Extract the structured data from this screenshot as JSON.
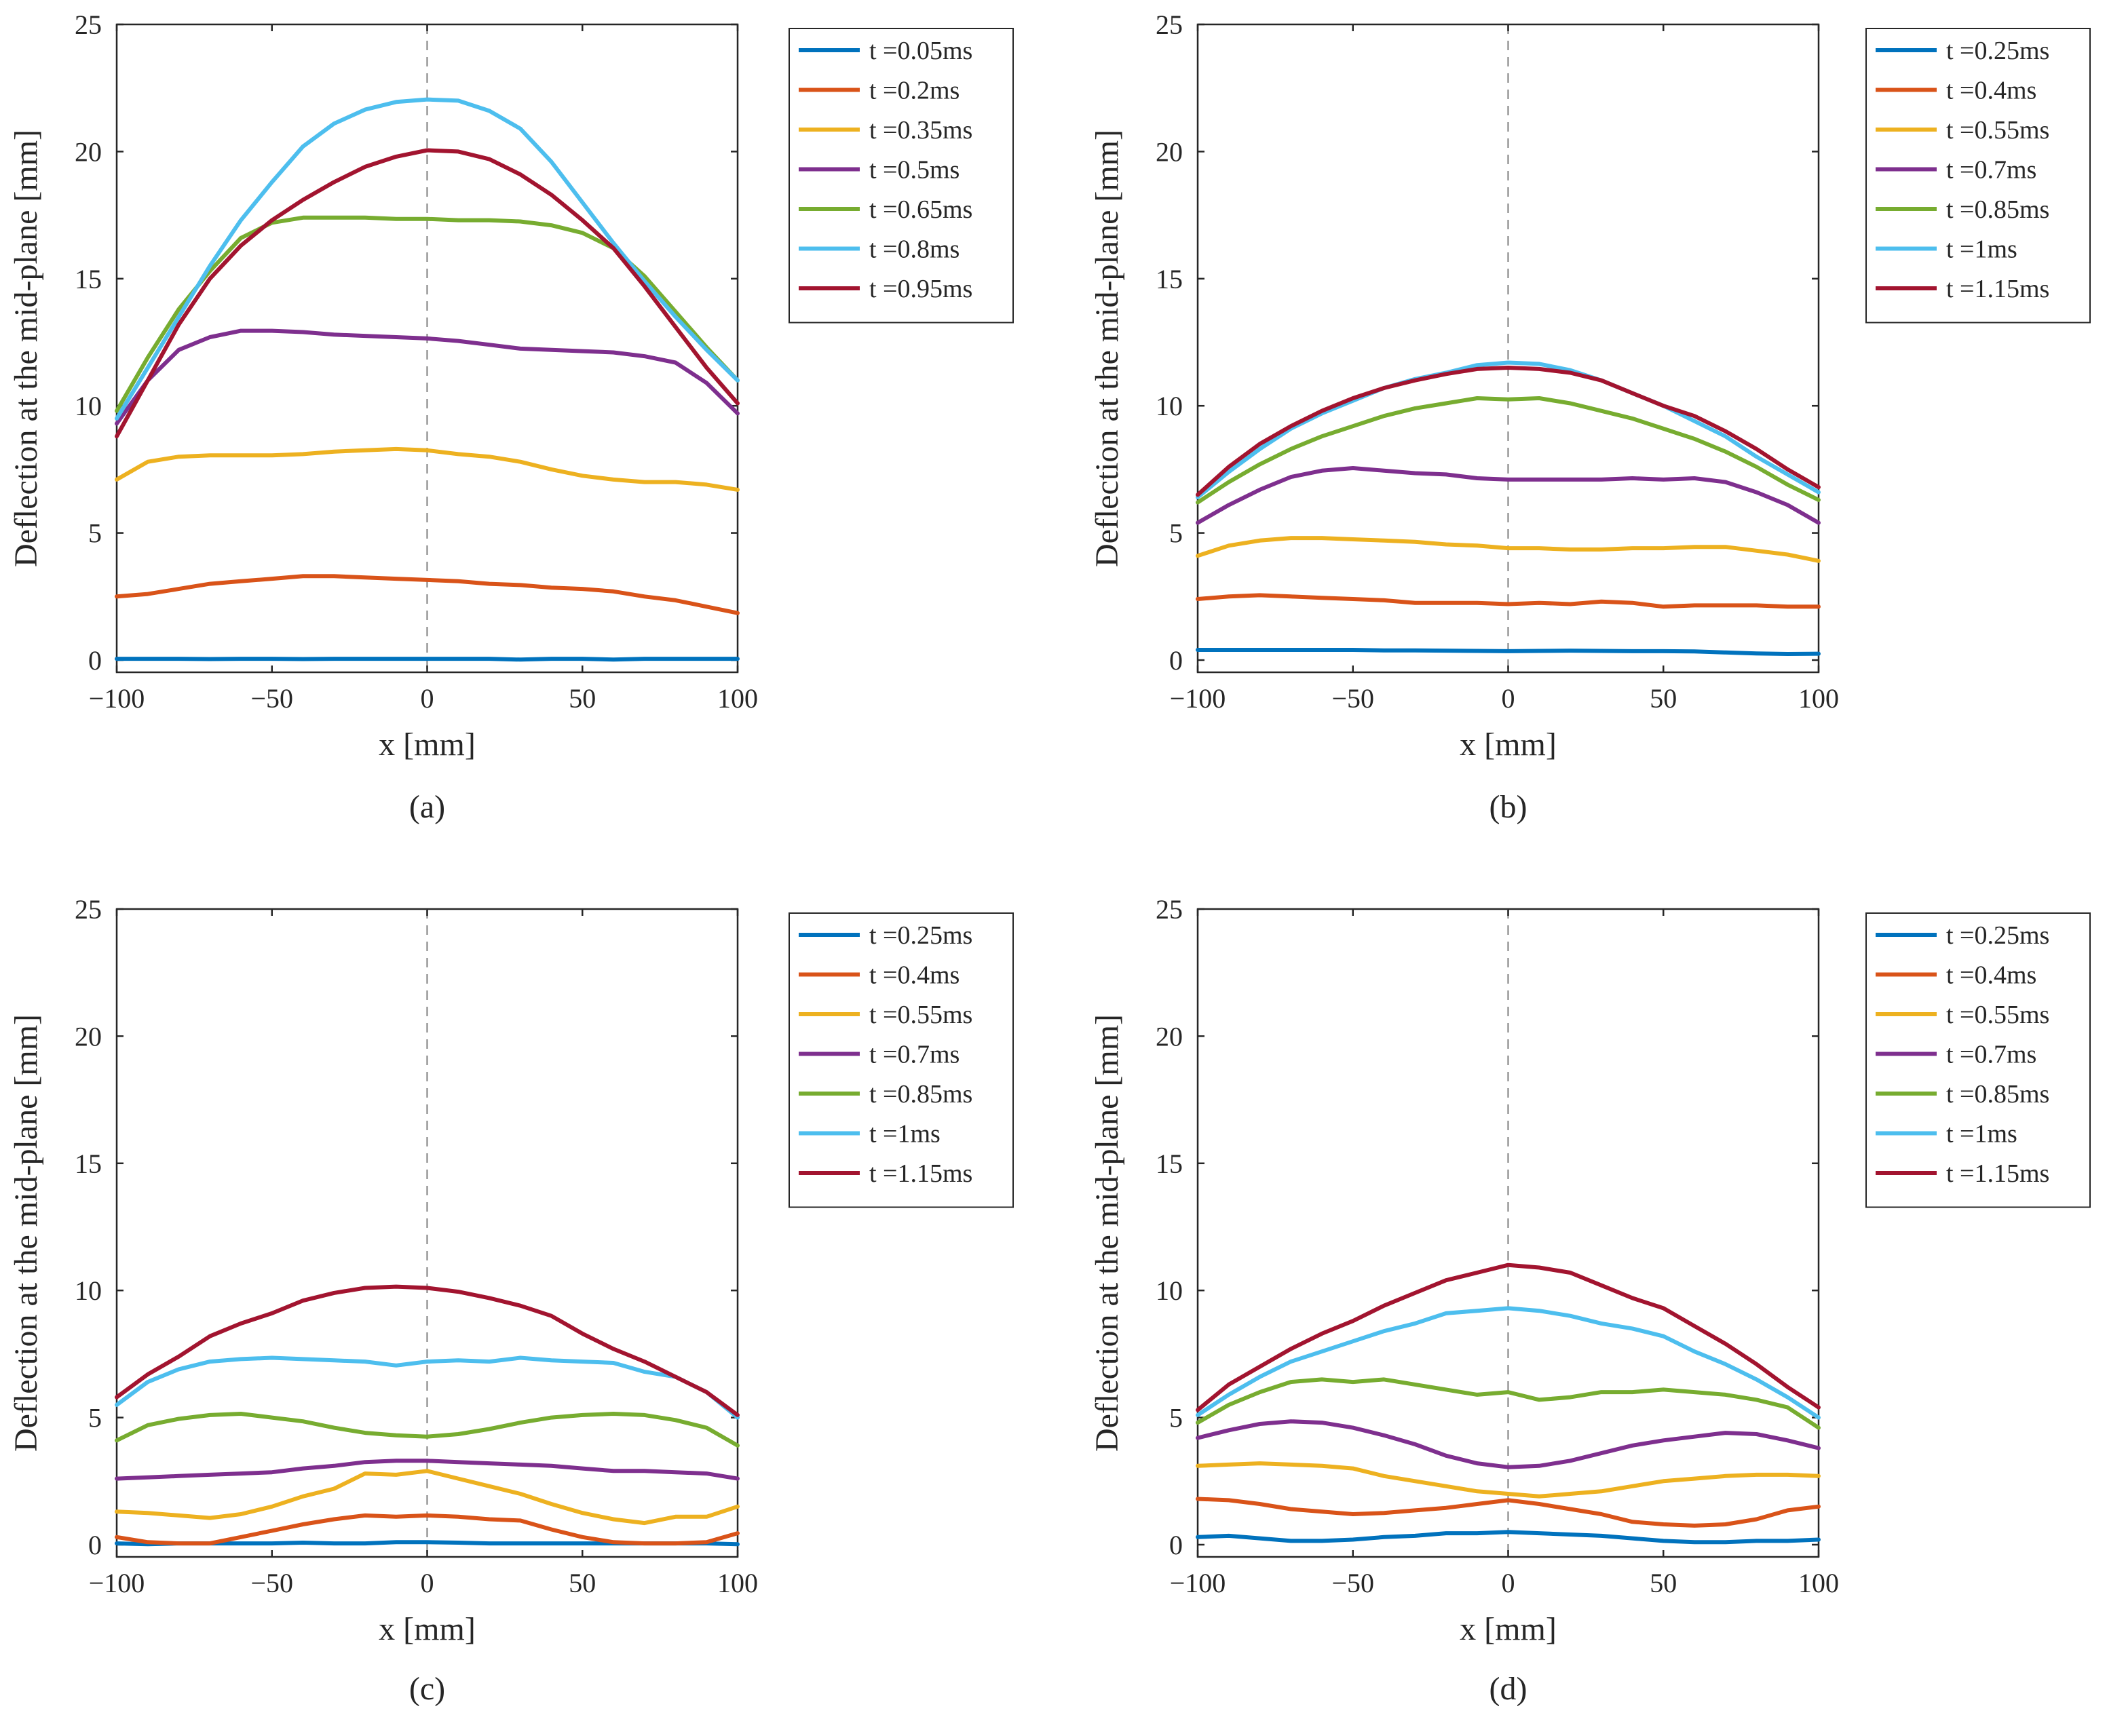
{
  "figure": {
    "colors": [
      "#0072BD",
      "#D95319",
      "#EDB120",
      "#7E2F8E",
      "#77AC30",
      "#4DBEEE",
      "#A2142F"
    ],
    "center_line_color": "#999999"
  },
  "chart_data": [
    {
      "type": "line",
      "panel_label": "(a)",
      "xlabel": "x [mm]",
      "ylabel": "Deflection at the mid-plane [mm]",
      "xlim": [
        -100,
        100
      ],
      "ylim": [
        0,
        25
      ],
      "xticks": [
        -100,
        -50,
        0,
        50,
        100
      ],
      "xtick_labels": [
        "−100",
        "−50",
        "0",
        "50",
        "100"
      ],
      "yticks": [
        0,
        5,
        10,
        15,
        20,
        25
      ],
      "ytick_labels": [
        "0",
        "5",
        "10",
        "15",
        "20",
        "25"
      ],
      "center_line_x": 0,
      "legend_position": "outside-right",
      "x": [
        -100,
        -90,
        -80,
        -70,
        -60,
        -50,
        -40,
        -30,
        -20,
        -10,
        0,
        10,
        20,
        30,
        40,
        50,
        60,
        70,
        80,
        90,
        100
      ],
      "series": [
        {
          "name": "t =0.05ms",
          "values": [
            0.05,
            0.05,
            0.05,
            0.04,
            0.05,
            0.05,
            0.04,
            0.05,
            0.05,
            0.05,
            0.05,
            0.05,
            0.05,
            0.02,
            0.05,
            0.05,
            0.02,
            0.05,
            0.05,
            0.05,
            0.05
          ]
        },
        {
          "name": "t =0.2ms",
          "values": [
            2.5,
            2.6,
            2.8,
            3.0,
            3.1,
            3.2,
            3.3,
            3.3,
            3.25,
            3.2,
            3.15,
            3.1,
            3.0,
            2.95,
            2.85,
            2.8,
            2.7,
            2.5,
            2.35,
            2.1,
            1.85
          ]
        },
        {
          "name": "t =0.35ms",
          "values": [
            7.1,
            7.8,
            8.0,
            8.05,
            8.05,
            8.05,
            8.1,
            8.2,
            8.25,
            8.3,
            8.25,
            8.1,
            8.0,
            7.8,
            7.5,
            7.25,
            7.1,
            7.0,
            7.0,
            6.9,
            6.7
          ]
        },
        {
          "name": "t =0.5ms",
          "values": [
            9.3,
            11.0,
            12.2,
            12.7,
            12.95,
            12.95,
            12.9,
            12.8,
            12.75,
            12.7,
            12.65,
            12.55,
            12.4,
            12.25,
            12.2,
            12.15,
            12.1,
            11.95,
            11.7,
            10.9,
            9.7
          ]
        },
        {
          "name": "t =0.65ms",
          "values": [
            9.8,
            11.9,
            13.8,
            15.3,
            16.6,
            17.2,
            17.4,
            17.4,
            17.4,
            17.35,
            17.35,
            17.3,
            17.3,
            17.25,
            17.1,
            16.8,
            16.2,
            15.1,
            13.7,
            12.3,
            11.0
          ]
        },
        {
          "name": "t =0.8ms",
          "values": [
            9.5,
            11.5,
            13.5,
            15.5,
            17.3,
            18.8,
            20.2,
            21.1,
            21.65,
            21.95,
            22.05,
            22.0,
            21.6,
            20.9,
            19.6,
            18.0,
            16.4,
            14.9,
            13.5,
            12.2,
            11.0
          ]
        },
        {
          "name": "t =0.95ms",
          "values": [
            8.8,
            11.0,
            13.2,
            15.0,
            16.3,
            17.3,
            18.1,
            18.8,
            19.4,
            19.8,
            20.05,
            20.0,
            19.7,
            19.1,
            18.3,
            17.3,
            16.2,
            14.7,
            13.1,
            11.5,
            10.1
          ]
        }
      ]
    },
    {
      "type": "line",
      "panel_label": "(b)",
      "xlabel": "x [mm]",
      "ylabel": "Deflection at the mid-plane [mm]",
      "xlim": [
        -100,
        100
      ],
      "ylim": [
        0,
        25
      ],
      "xticks": [
        -100,
        -50,
        0,
        50,
        100
      ],
      "xtick_labels": [
        "−100",
        "−50",
        "0",
        "50",
        "100"
      ],
      "yticks": [
        0,
        5,
        10,
        15,
        20,
        25
      ],
      "ytick_labels": [
        "0",
        "5",
        "10",
        "15",
        "20",
        "25"
      ],
      "center_line_x": 0,
      "legend_position": "outside-right",
      "x": [
        -100,
        -90,
        -80,
        -70,
        -60,
        -50,
        -40,
        -30,
        -20,
        -10,
        0,
        10,
        20,
        30,
        40,
        50,
        60,
        70,
        80,
        90,
        100
      ],
      "series": [
        {
          "name": "t =0.25ms",
          "values": [
            0.4,
            0.4,
            0.4,
            0.4,
            0.4,
            0.4,
            0.38,
            0.38,
            0.37,
            0.36,
            0.35,
            0.36,
            0.37,
            0.36,
            0.35,
            0.35,
            0.34,
            0.3,
            0.26,
            0.24,
            0.25
          ]
        },
        {
          "name": "t =0.4ms",
          "values": [
            2.4,
            2.5,
            2.55,
            2.5,
            2.45,
            2.4,
            2.35,
            2.25,
            2.25,
            2.25,
            2.2,
            2.25,
            2.2,
            2.3,
            2.25,
            2.1,
            2.15,
            2.15,
            2.15,
            2.1,
            2.1
          ]
        },
        {
          "name": "t =0.55ms",
          "values": [
            4.1,
            4.5,
            4.7,
            4.8,
            4.8,
            4.75,
            4.7,
            4.65,
            4.55,
            4.5,
            4.4,
            4.4,
            4.35,
            4.35,
            4.4,
            4.4,
            4.45,
            4.45,
            4.3,
            4.15,
            3.9
          ]
        },
        {
          "name": "t =0.7ms",
          "values": [
            5.4,
            6.1,
            6.7,
            7.2,
            7.45,
            7.55,
            7.45,
            7.35,
            7.3,
            7.15,
            7.1,
            7.1,
            7.1,
            7.1,
            7.15,
            7.1,
            7.15,
            7.0,
            6.6,
            6.1,
            5.4
          ]
        },
        {
          "name": "t =0.85ms",
          "values": [
            6.2,
            7.0,
            7.7,
            8.3,
            8.8,
            9.2,
            9.6,
            9.9,
            10.1,
            10.3,
            10.25,
            10.3,
            10.1,
            9.8,
            9.5,
            9.1,
            8.7,
            8.2,
            7.6,
            6.9,
            6.3
          ]
        },
        {
          "name": "t =1ms",
          "values": [
            6.4,
            7.4,
            8.3,
            9.1,
            9.7,
            10.2,
            10.7,
            11.05,
            11.3,
            11.6,
            11.7,
            11.65,
            11.4,
            11.0,
            10.5,
            10.0,
            9.4,
            8.8,
            8.0,
            7.3,
            6.6
          ]
        },
        {
          "name": "t =1.15ms",
          "values": [
            6.5,
            7.6,
            8.5,
            9.2,
            9.8,
            10.3,
            10.7,
            11.0,
            11.25,
            11.45,
            11.5,
            11.45,
            11.3,
            11.0,
            10.5,
            10.0,
            9.6,
            9.0,
            8.3,
            7.5,
            6.8
          ]
        }
      ]
    },
    {
      "type": "line",
      "panel_label": "(c)",
      "xlabel": "x [mm]",
      "ylabel": "Deflection at the mid-plane [mm]",
      "xlim": [
        -100,
        100
      ],
      "ylim": [
        0,
        25
      ],
      "xticks": [
        -100,
        -50,
        0,
        50,
        100
      ],
      "xtick_labels": [
        "−100",
        "−50",
        "0",
        "50",
        "100"
      ],
      "yticks": [
        0,
        5,
        10,
        15,
        20,
        25
      ],
      "ytick_labels": [
        "0",
        "5",
        "10",
        "15",
        "20",
        "25"
      ],
      "center_line_x": 0,
      "legend_position": "outside-right",
      "x": [
        -100,
        -90,
        -80,
        -70,
        -60,
        -50,
        -40,
        -30,
        -20,
        -10,
        0,
        10,
        20,
        30,
        40,
        50,
        60,
        70,
        80,
        90,
        100
      ],
      "series": [
        {
          "name": "t =0.25ms",
          "values": [
            0.05,
            0.02,
            0.05,
            0.05,
            0.05,
            0.05,
            0.08,
            0.05,
            0.05,
            0.1,
            0.1,
            0.08,
            0.05,
            0.05,
            0.05,
            0.05,
            0.05,
            0.05,
            0.05,
            0.05,
            0.02
          ]
        },
        {
          "name": "t =0.4ms",
          "values": [
            0.3,
            0.1,
            0.05,
            0.05,
            0.3,
            0.55,
            0.8,
            1.0,
            1.15,
            1.1,
            1.15,
            1.1,
            1.0,
            0.95,
            0.6,
            0.3,
            0.1,
            0.05,
            0.05,
            0.1,
            0.45
          ]
        },
        {
          "name": "t =0.55ms",
          "values": [
            1.3,
            1.25,
            1.15,
            1.05,
            1.2,
            1.5,
            1.9,
            2.2,
            2.8,
            2.75,
            2.9,
            2.6,
            2.3,
            2.0,
            1.6,
            1.25,
            1.0,
            0.85,
            1.1,
            1.1,
            1.5
          ]
        },
        {
          "name": "t =0.7ms",
          "values": [
            2.6,
            2.65,
            2.7,
            2.75,
            2.8,
            2.85,
            3.0,
            3.1,
            3.25,
            3.3,
            3.3,
            3.25,
            3.2,
            3.15,
            3.1,
            3.0,
            2.9,
            2.9,
            2.85,
            2.8,
            2.6
          ]
        },
        {
          "name": "t =0.85ms",
          "values": [
            4.1,
            4.7,
            4.95,
            5.1,
            5.15,
            5.0,
            4.85,
            4.6,
            4.4,
            4.3,
            4.25,
            4.35,
            4.55,
            4.8,
            5.0,
            5.1,
            5.15,
            5.1,
            4.9,
            4.6,
            3.9
          ]
        },
        {
          "name": "t =1ms",
          "values": [
            5.5,
            6.4,
            6.9,
            7.2,
            7.3,
            7.35,
            7.3,
            7.25,
            7.2,
            7.05,
            7.2,
            7.25,
            7.2,
            7.35,
            7.25,
            7.2,
            7.15,
            6.8,
            6.6,
            6.0,
            5.0
          ]
        },
        {
          "name": "t =1.15ms",
          "values": [
            5.8,
            6.7,
            7.4,
            8.2,
            8.7,
            9.1,
            9.6,
            9.9,
            10.1,
            10.15,
            10.1,
            9.95,
            9.7,
            9.4,
            9.0,
            8.3,
            7.7,
            7.2,
            6.6,
            6.0,
            5.1
          ]
        }
      ]
    },
    {
      "type": "line",
      "panel_label": "(d)",
      "xlabel": "x [mm]",
      "ylabel": "Deflection at the mid-plane [mm]",
      "xlim": [
        -100,
        100
      ],
      "ylim": [
        0,
        25
      ],
      "xticks": [
        -100,
        -50,
        0,
        50,
        100
      ],
      "xtick_labels": [
        "−100",
        "−50",
        "0",
        "50",
        "100"
      ],
      "yticks": [
        0,
        5,
        10,
        15,
        20,
        25
      ],
      "ytick_labels": [
        "0",
        "5",
        "10",
        "15",
        "20",
        "25"
      ],
      "center_line_x": 0,
      "legend_position": "outside-right",
      "x": [
        -100,
        -90,
        -80,
        -70,
        -60,
        -50,
        -40,
        -30,
        -20,
        -10,
        0,
        10,
        20,
        30,
        40,
        50,
        60,
        70,
        80,
        90,
        100
      ],
      "series": [
        {
          "name": "t =0.25ms",
          "values": [
            0.3,
            0.35,
            0.25,
            0.15,
            0.15,
            0.2,
            0.3,
            0.35,
            0.45,
            0.45,
            0.5,
            0.45,
            0.4,
            0.35,
            0.25,
            0.15,
            0.1,
            0.1,
            0.15,
            0.15,
            0.2
          ]
        },
        {
          "name": "t =0.4ms",
          "values": [
            1.8,
            1.75,
            1.6,
            1.4,
            1.3,
            1.2,
            1.25,
            1.35,
            1.45,
            1.6,
            1.75,
            1.6,
            1.4,
            1.2,
            0.9,
            0.8,
            0.75,
            0.8,
            1.0,
            1.35,
            1.5
          ]
        },
        {
          "name": "t =0.55ms",
          "values": [
            3.1,
            3.15,
            3.2,
            3.15,
            3.1,
            3.0,
            2.7,
            2.5,
            2.3,
            2.1,
            2.0,
            1.9,
            2.0,
            2.1,
            2.3,
            2.5,
            2.6,
            2.7,
            2.75,
            2.75,
            2.7
          ]
        },
        {
          "name": "t =0.7ms",
          "values": [
            4.2,
            4.5,
            4.75,
            4.85,
            4.8,
            4.6,
            4.3,
            3.95,
            3.5,
            3.2,
            3.05,
            3.1,
            3.3,
            3.6,
            3.9,
            4.1,
            4.25,
            4.4,
            4.35,
            4.1,
            3.8
          ]
        },
        {
          "name": "t =0.85ms",
          "values": [
            4.8,
            5.5,
            6.0,
            6.4,
            6.5,
            6.4,
            6.5,
            6.3,
            6.1,
            5.9,
            6.0,
            5.7,
            5.8,
            6.0,
            6.0,
            6.1,
            6.0,
            5.9,
            5.7,
            5.4,
            4.6
          ]
        },
        {
          "name": "t =1ms",
          "values": [
            5.1,
            5.9,
            6.6,
            7.2,
            7.6,
            8.0,
            8.4,
            8.7,
            9.1,
            9.2,
            9.3,
            9.2,
            9.0,
            8.7,
            8.5,
            8.2,
            7.6,
            7.1,
            6.5,
            5.8,
            5.0
          ]
        },
        {
          "name": "t =1.15ms",
          "values": [
            5.3,
            6.3,
            7.0,
            7.7,
            8.3,
            8.8,
            9.4,
            9.9,
            10.4,
            10.7,
            11.0,
            10.9,
            10.7,
            10.2,
            9.7,
            9.3,
            8.6,
            7.9,
            7.1,
            6.2,
            5.4
          ]
        }
      ]
    }
  ]
}
